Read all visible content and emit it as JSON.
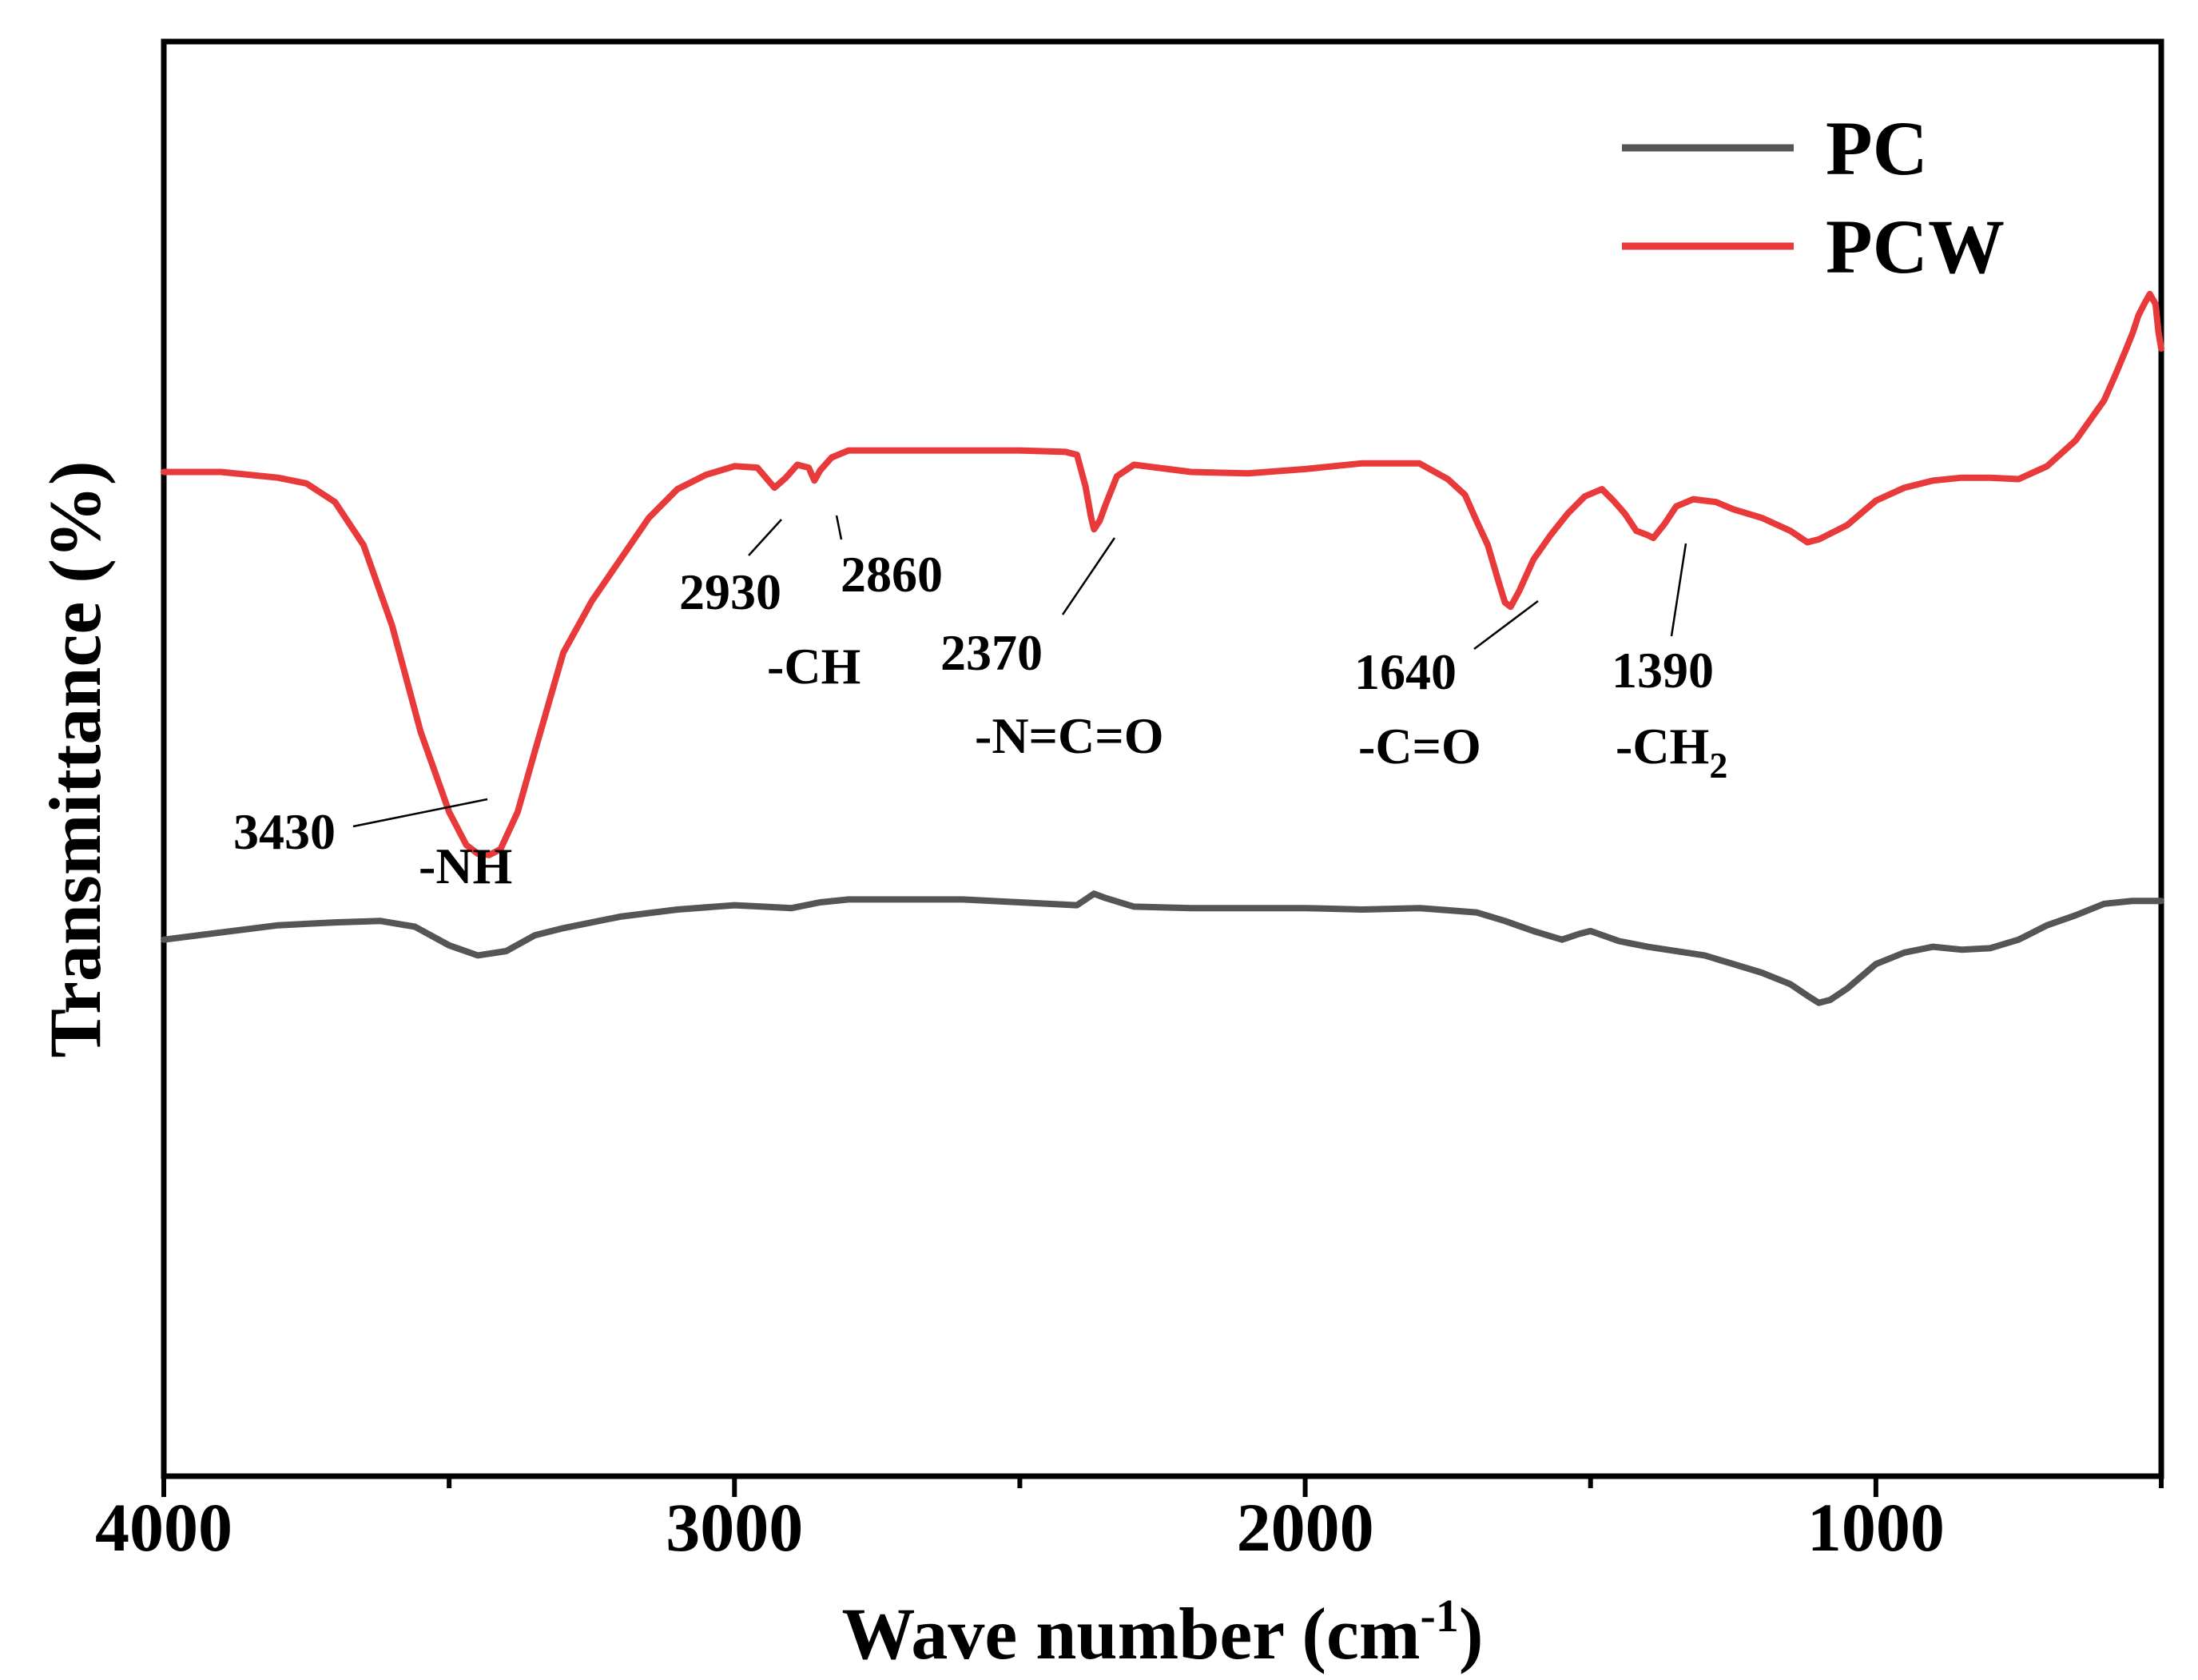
{
  "chart_data": {
    "type": "line",
    "title": "",
    "xlabel": "Wave number (cm",
    "xlabel_sup": "-1",
    "xlabel_end": ")",
    "ylabel": "Transmittance (%)",
    "xlim": [
      4000,
      500
    ],
    "ylim": [
      0,
      100
    ],
    "x_reversed": true,
    "yticks_shown": false,
    "grid": false,
    "legend_position": "top-right",
    "xticks": [
      {
        "value": 4000,
        "label": "4000"
      },
      {
        "value": 3000,
        "label": "3000"
      },
      {
        "value": 2000,
        "label": "2000"
      },
      {
        "value": 1000,
        "label": "1000"
      }
    ],
    "series": [
      {
        "name": "PC",
        "color": "#555555",
        "x": [
          4000,
          3900,
          3800,
          3700,
          3620,
          3560,
          3500,
          3450,
          3400,
          3350,
          3300,
          3200,
          3100,
          3000,
          2950,
          2900,
          2850,
          2800,
          2700,
          2600,
          2500,
          2400,
          2370,
          2350,
          2300,
          2200,
          2100,
          2000,
          1900,
          1800,
          1700,
          1650,
          1600,
          1550,
          1520,
          1500,
          1450,
          1400,
          1300,
          1200,
          1150,
          1120,
          1100,
          1080,
          1050,
          1000,
          950,
          900,
          850,
          800,
          750,
          700,
          650,
          600,
          550,
          500
        ],
        "y": [
          37.4,
          37.9,
          38.4,
          38.6,
          38.7,
          38.3,
          37.0,
          36.3,
          36.6,
          37.7,
          38.2,
          39.0,
          39.5,
          39.8,
          39.7,
          39.6,
          40.0,
          40.2,
          40.2,
          40.2,
          40.0,
          39.8,
          40.6,
          40.3,
          39.7,
          39.6,
          39.6,
          39.6,
          39.5,
          39.6,
          39.3,
          38.7,
          38.0,
          37.4,
          37.8,
          38.0,
          37.3,
          36.9,
          36.3,
          35.1,
          34.3,
          33.5,
          33.0,
          33.2,
          34.0,
          35.7,
          36.5,
          36.9,
          36.7,
          36.8,
          37.4,
          38.4,
          39.1,
          39.9,
          40.1,
          40.1
        ]
      },
      {
        "name": "PCW",
        "color": "#e83a3a",
        "x": [
          4000,
          3900,
          3800,
          3750,
          3700,
          3650,
          3600,
          3550,
          3500,
          3470,
          3450,
          3430,
          3410,
          3380,
          3350,
          3300,
          3250,
          3200,
          3150,
          3100,
          3050,
          3000,
          2960,
          2930,
          2910,
          2890,
          2870,
          2860,
          2850,
          2830,
          2800,
          2700,
          2600,
          2500,
          2420,
          2400,
          2385,
          2375,
          2370,
          2360,
          2350,
          2330,
          2300,
          2200,
          2100,
          2000,
          1900,
          1800,
          1750,
          1720,
          1700,
          1680,
          1660,
          1650,
          1640,
          1625,
          1600,
          1570,
          1540,
          1510,
          1480,
          1460,
          1440,
          1420,
          1400,
          1390,
          1370,
          1350,
          1320,
          1280,
          1250,
          1200,
          1150,
          1120,
          1100,
          1050,
          1000,
          950,
          900,
          850,
          800,
          750,
          700,
          650,
          600,
          580,
          560,
          550,
          540,
          530,
          520,
          510,
          505,
          500
        ],
        "y": [
          70.0,
          70.0,
          69.6,
          69.2,
          67.9,
          64.9,
          59.3,
          51.9,
          46.3,
          44.0,
          43.4,
          43.3,
          43.7,
          46.3,
          50.5,
          57.4,
          61.0,
          63.9,
          66.8,
          68.8,
          69.8,
          70.4,
          70.3,
          68.9,
          69.6,
          70.5,
          70.3,
          69.4,
          70.1,
          71.0,
          71.5,
          71.5,
          71.5,
          71.5,
          71.4,
          71.2,
          69.0,
          66.8,
          66.0,
          66.6,
          67.7,
          69.7,
          70.5,
          70.0,
          69.9,
          70.2,
          70.6,
          70.6,
          69.5,
          68.4,
          66.6,
          64.9,
          62.2,
          60.9,
          60.6,
          61.7,
          63.9,
          65.6,
          67.1,
          68.3,
          68.8,
          68.0,
          67.1,
          65.9,
          65.6,
          65.4,
          66.4,
          67.6,
          68.1,
          67.9,
          67.4,
          66.8,
          65.9,
          65.1,
          65.3,
          66.3,
          68.0,
          68.9,
          69.4,
          69.6,
          69.6,
          69.5,
          70.4,
          72.2,
          75.0,
          76.8,
          78.7,
          79.7,
          80.9,
          81.7,
          82.4,
          81.7,
          79.8,
          78.6
        ]
      }
    ],
    "annotations": [
      {
        "id": "3430",
        "wavenumber": 3430,
        "value": "3430",
        "group": "-NH"
      },
      {
        "id": "2930",
        "wavenumber": 2930,
        "value": "2930",
        "group": "-CH"
      },
      {
        "id": "2860",
        "wavenumber": 2860,
        "value": "2860",
        "group": ""
      },
      {
        "id": "2370",
        "wavenumber": 2370,
        "value": "2370",
        "group": "-N=C=O"
      },
      {
        "id": "1640",
        "wavenumber": 1640,
        "value": "1640",
        "group": "-C=O"
      },
      {
        "id": "1390",
        "wavenumber": 1390,
        "value": "1390",
        "group": "-CH",
        "group_sub": "2"
      }
    ]
  }
}
